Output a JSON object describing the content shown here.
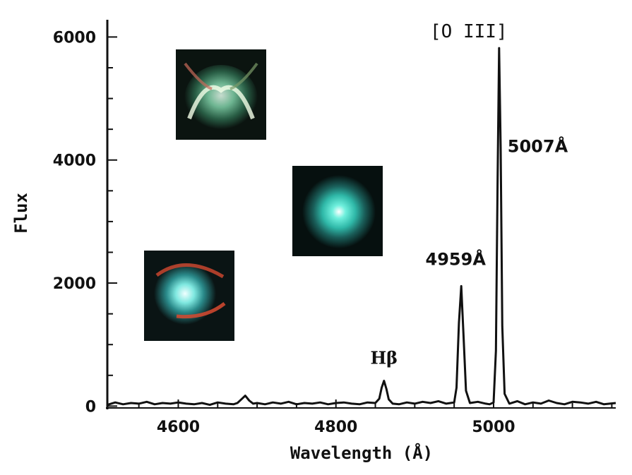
{
  "chart_data": {
    "type": "line",
    "xlabel": "Wavelength (Å)",
    "ylabel": "Flux",
    "xlim": [
      4510,
      5155
    ],
    "ylim": [
      -30,
      6280
    ],
    "x_ticks": [
      4600,
      4800,
      5000
    ],
    "x_tick_labels": [
      "4600",
      "4800",
      "5000"
    ],
    "y_ticks": [
      0,
      2000,
      4000,
      6000
    ],
    "y_tick_labels": [
      "0",
      "2000",
      "4000",
      "6000"
    ],
    "grid": false,
    "series": [
      {
        "x": [
          4510,
          4520,
          4530,
          4540,
          4550,
          4560,
          4570,
          4580,
          4590,
          4600,
          4610,
          4620,
          4630,
          4640,
          4650,
          4660,
          4670,
          4675,
          4680,
          4685,
          4690,
          4695,
          4700,
          4710,
          4720,
          4730,
          4740,
          4750,
          4760,
          4770,
          4780,
          4790,
          4800,
          4810,
          4820,
          4830,
          4840,
          4850,
          4855,
          4858,
          4861,
          4864,
          4867,
          4872,
          4880,
          4890,
          4900,
          4910,
          4920,
          4930,
          4940,
          4950,
          4953,
          4956,
          4959,
          4962,
          4965,
          4970,
          4980,
          4990,
          4995,
          5000,
          5003,
          5005,
          5007,
          5009,
          5011,
          5014,
          5020,
          5030,
          5040,
          5050,
          5060,
          5070,
          5080,
          5090,
          5100,
          5110,
          5120,
          5130,
          5140,
          5155
        ],
        "y": [
          20,
          60,
          30,
          50,
          40,
          70,
          30,
          50,
          40,
          60,
          40,
          30,
          50,
          20,
          60,
          40,
          30,
          50,
          110,
          170,
          90,
          40,
          50,
          30,
          60,
          40,
          70,
          30,
          50,
          40,
          60,
          30,
          50,
          60,
          40,
          30,
          60,
          50,
          120,
          300,
          410,
          280,
          110,
          40,
          30,
          60,
          40,
          70,
          50,
          80,
          40,
          60,
          300,
          1350,
          1950,
          1100,
          250,
          50,
          70,
          40,
          30,
          60,
          900,
          3600,
          5820,
          4200,
          1300,
          200,
          40,
          80,
          30,
          60,
          40,
          90,
          50,
          30,
          70,
          60,
          40,
          70,
          30,
          50
        ]
      }
    ],
    "annotations": [
      {
        "id": "oiii",
        "text": "[O III]",
        "at": [
          5007,
          6280
        ]
      },
      {
        "id": "l5007",
        "text": "5007Å",
        "at": [
          5007,
          4200
        ]
      },
      {
        "id": "l4959",
        "text": "4959Å",
        "at": [
          4959,
          2200
        ]
      },
      {
        "id": "hb",
        "text": "Hβ",
        "at": [
          4861,
          620
        ]
      }
    ]
  },
  "insets": [
    {
      "name": "nebula-inset-bipolar",
      "description_shape": "bipolar"
    },
    {
      "name": "nebula-inset-round",
      "description_shape": "round"
    },
    {
      "name": "nebula-inset-ring",
      "description_shape": "ring"
    }
  ]
}
